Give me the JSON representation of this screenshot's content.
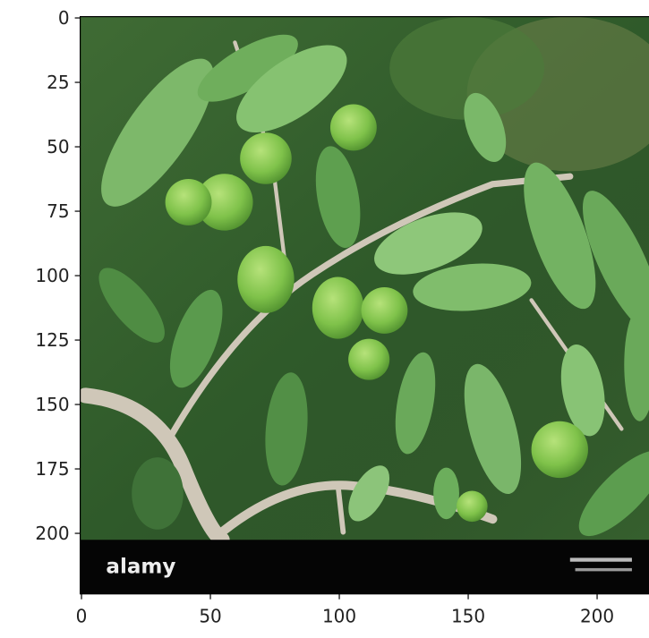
{
  "chart_data": {
    "type": "image",
    "watermark": "alamy",
    "xlim": [
      -0.5,
      223.5
    ],
    "ylim": [
      223.5,
      -0.5
    ],
    "xticks": [
      0,
      50,
      100,
      150,
      200
    ],
    "yticks": [
      0,
      25,
      50,
      75,
      100,
      125,
      150,
      175,
      200
    ]
  }
}
